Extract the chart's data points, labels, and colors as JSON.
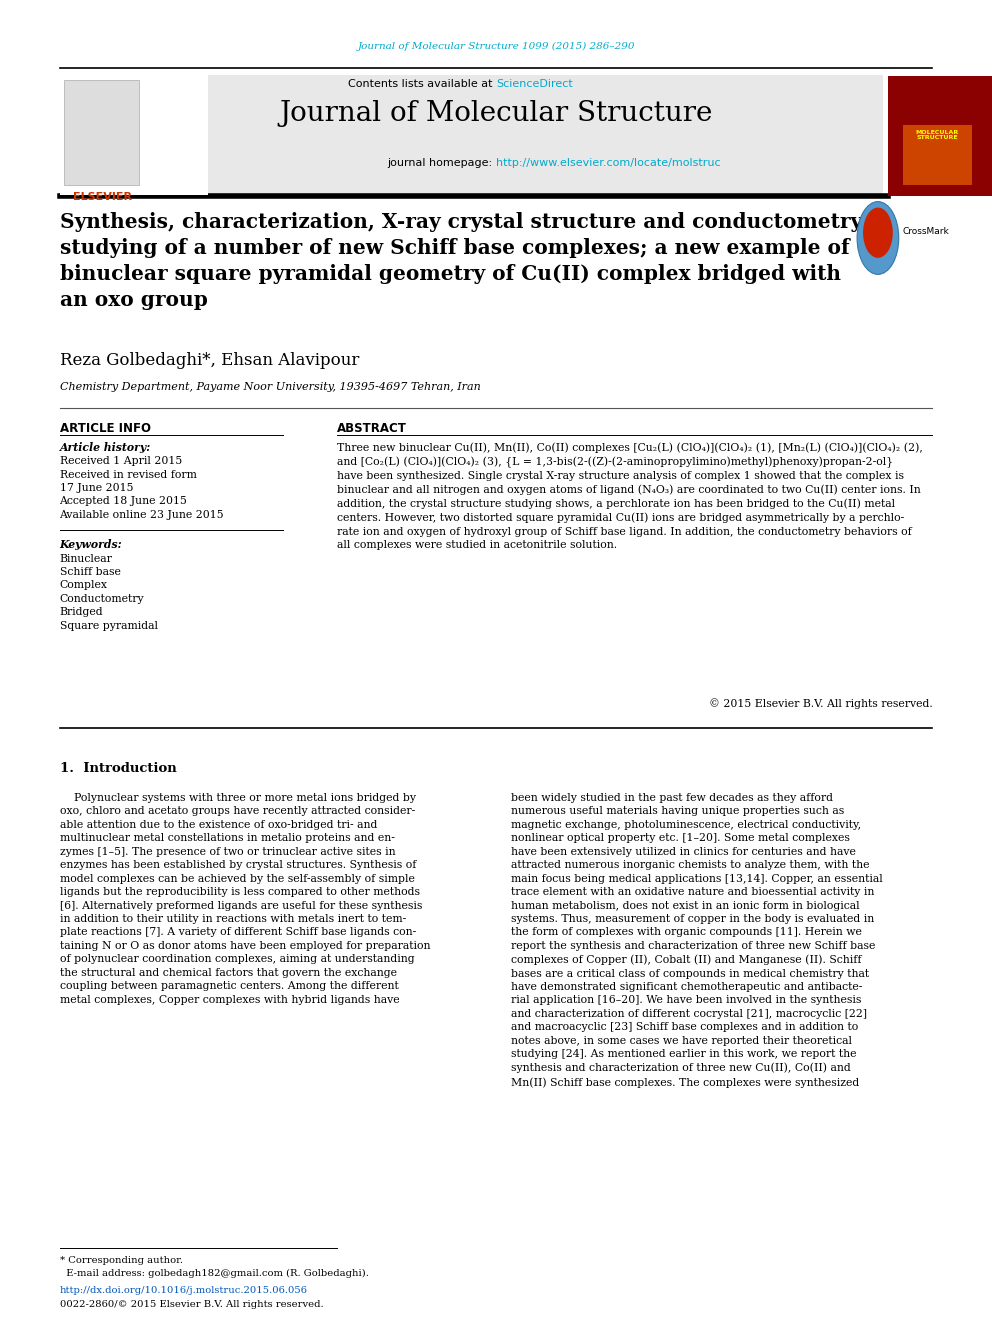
{
  "page_bg": "#ffffff",
  "header_journal_text": "Journal of Molecular Structure 1099 (2015) 286–290",
  "header_journal_color": "#00aacc",
  "banner_bg": "#e8e8e8",
  "banner_contents_text": "Contents lists available at ",
  "banner_sciencedirect_text": "ScienceDirect",
  "banner_sciencedirect_color": "#00aacc",
  "journal_title": "Journal of Molecular Structure",
  "journal_homepage_label": "journal homepage: ",
  "journal_homepage_url": "http://www.elsevier.com/locate/molstruc",
  "journal_homepage_color": "#00aacc",
  "paper_title": "Synthesis, characterization, X-ray crystal structure and conductometry\nstudying of a number of new Schiff base complexes; a new example of\nbinuclear square pyramidal geometry of Cu(II) complex bridged with\nan oxo group",
  "authors": "Reza Golbedaghi*, Ehsan Alavipour",
  "affiliation": "Chemistry Department, Payame Noor University, 19395-4697 Tehran, Iran",
  "article_info_title": "ARTICLE INFO",
  "article_history_label": "Article history:",
  "article_history": [
    "Received 1 April 2015",
    "Received in revised form",
    "17 June 2015",
    "Accepted 18 June 2015",
    "Available online 23 June 2015"
  ],
  "keywords_label": "Keywords:",
  "keywords": [
    "Binuclear",
    "Schiff base",
    "Complex",
    "Conductometry",
    "Bridged",
    "Square pyramidal"
  ],
  "abstract_title": "ABSTRACT",
  "abstract_text": "Three new binuclear Cu(II), Mn(II), Co(II) complexes [Cu₂(L) (ClO₄)](ClO₄)₂ (1), [Mn₂(L) (ClO₄)](ClO₄)₂ (2),\nand [Co₂(L) (ClO₄)](ClO₄)₂ (3), {L = 1,3-bis(2-((Z)-(2-aminopropylimino)methyl)phenoxy)propan-2-ol}\nhave been synthesized. Single crystal X-ray structure analysis of complex 1 showed that the complex is\nbinuclear and all nitrogen and oxygen atoms of ligand (N₄O₃) are coordinated to two Cu(II) center ions. In\naddition, the crystal structure studying shows, a perchlorate ion has been bridged to the Cu(II) metal\ncenters. However, two distorted square pyramidal Cu(II) ions are bridged asymmetrically by a perchlo-\nrate ion and oxygen of hydroxyl group of Schiff base ligand. In addition, the conductometry behaviors of\nall complexes were studied in acetonitrile solution.",
  "copyright_text": "© 2015 Elsevier B.V. All rights reserved.",
  "intro_section": "1.  Introduction",
  "intro_col1": "    Polynuclear systems with three or more metal ions bridged by\noxo, chloro and acetato groups have recently attracted consider-\nable attention due to the existence of oxo-bridged tri- and\nmultinuclear metal constellations in metalio proteins and en-\nzymes [1–5]. The presence of two or trinuclear active sites in\nenzymes has been established by crystal structures. Synthesis of\nmodel complexes can be achieved by the self-assembly of simple\nligands but the reproducibility is less compared to other methods\n[6]. Alternatively preformed ligands are useful for these synthesis\nin addition to their utility in reactions with metals inert to tem-\nplate reactions [7]. A variety of different Schiff base ligands con-\ntaining N or O as donor atoms have been employed for preparation\nof polynuclear coordination complexes, aiming at understanding\nthe structural and chemical factors that govern the exchange\ncoupling between paramagnetic centers. Among the different\nmetal complexes, Copper complexes with hybrid ligands have",
  "intro_col2": "been widely studied in the past few decades as they afford\nnumerous useful materials having unique properties such as\nmagnetic exchange, photoluminescence, electrical conductivity,\nnonlinear optical property etc. [1–20]. Some metal complexes\nhave been extensively utilized in clinics for centuries and have\nattracted numerous inorganic chemists to analyze them, with the\nmain focus being medical applications [13,14]. Copper, an essential\ntrace element with an oxidative nature and bioessential activity in\nhuman metabolism, does not exist in an ionic form in biological\nsystems. Thus, measurement of copper in the body is evaluated in\nthe form of complexes with organic compounds [11]. Herein we\nreport the synthesis and characterization of three new Schiff base\ncomplexes of Copper (II), Cobalt (II) and Manganese (II). Schiff\nbases are a critical class of compounds in medical chemistry that\nhave demonstrated significant chemotherapeutic and antibacte-\nrial application [16–20]. We have been involved in the synthesis\nand characterization of different cocrystal [21], macrocyclic [22]\nand macroacyclic [23] Schiff base complexes and in addition to\nnotes above, in some cases we have reported their theoretical\nstudying [24]. As mentioned earlier in this work, we report the\nsynthesis and characterization of three new Cu(II), Co(II) and\nMn(II) Schiff base complexes. The complexes were synthesized",
  "footer_note1": "* Corresponding author.",
  "footer_note2": "  E-mail address: golbedagh182@gmail.com (R. Golbedaghi).",
  "footer_doi": "http://dx.doi.org/10.1016/j.molstruc.2015.06.056",
  "footer_issn": "0022-2860/© 2015 Elsevier B.V. All rights reserved."
}
